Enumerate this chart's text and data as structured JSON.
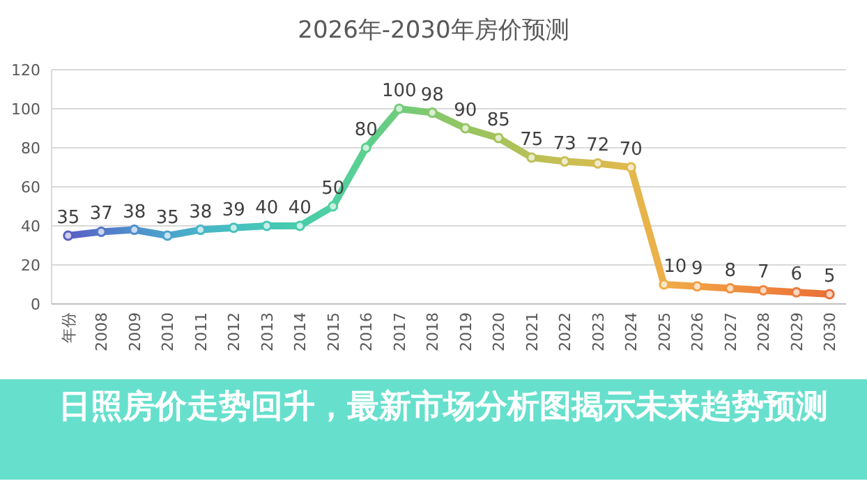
{
  "chart_data": {
    "type": "line",
    "title": "2026年-2030年房价预测",
    "categories": [
      "年份",
      "2008",
      "2009",
      "2010",
      "2011",
      "2012",
      "2013",
      "2014",
      "2015",
      "2016",
      "2017",
      "2018",
      "2019",
      "2020",
      "2021",
      "2022",
      "2023",
      "2024",
      "2025",
      "2026",
      "2027",
      "2028",
      "2029",
      "2030"
    ],
    "series": [
      {
        "values": [
          35,
          37,
          38,
          35,
          38,
          39,
          40,
          40,
          50,
          80,
          100,
          98,
          90,
          85,
          75,
          73,
          72,
          70,
          10,
          9,
          8,
          7,
          6,
          5
        ],
        "colors": [
          "#5a5fc4",
          "#5577c8",
          "#4f8fcc",
          "#4aa3cc",
          "#48b4c8",
          "#46c0bf",
          "#46c6b4",
          "#48ccab",
          "#4fd0a0",
          "#5cd08f",
          "#70cc7c",
          "#84c86c",
          "#95c560",
          "#a6c25a",
          "#b8c056",
          "#c8be52",
          "#d4bc50",
          "#e2b84c",
          "#efae48",
          "#f09f44",
          "#f09240",
          "#ef853c",
          "#ec7a3a",
          "#e87038"
        ]
      }
    ],
    "ylim": [
      0,
      120
    ],
    "yticks": [
      0,
      20,
      40,
      60,
      80,
      100,
      120
    ],
    "grid": "y",
    "marker": "circle",
    "data_labels": true,
    "annotations": [
      "日照房价走势回升，最新市场分析图揭示未来趋势预测"
    ]
  }
}
